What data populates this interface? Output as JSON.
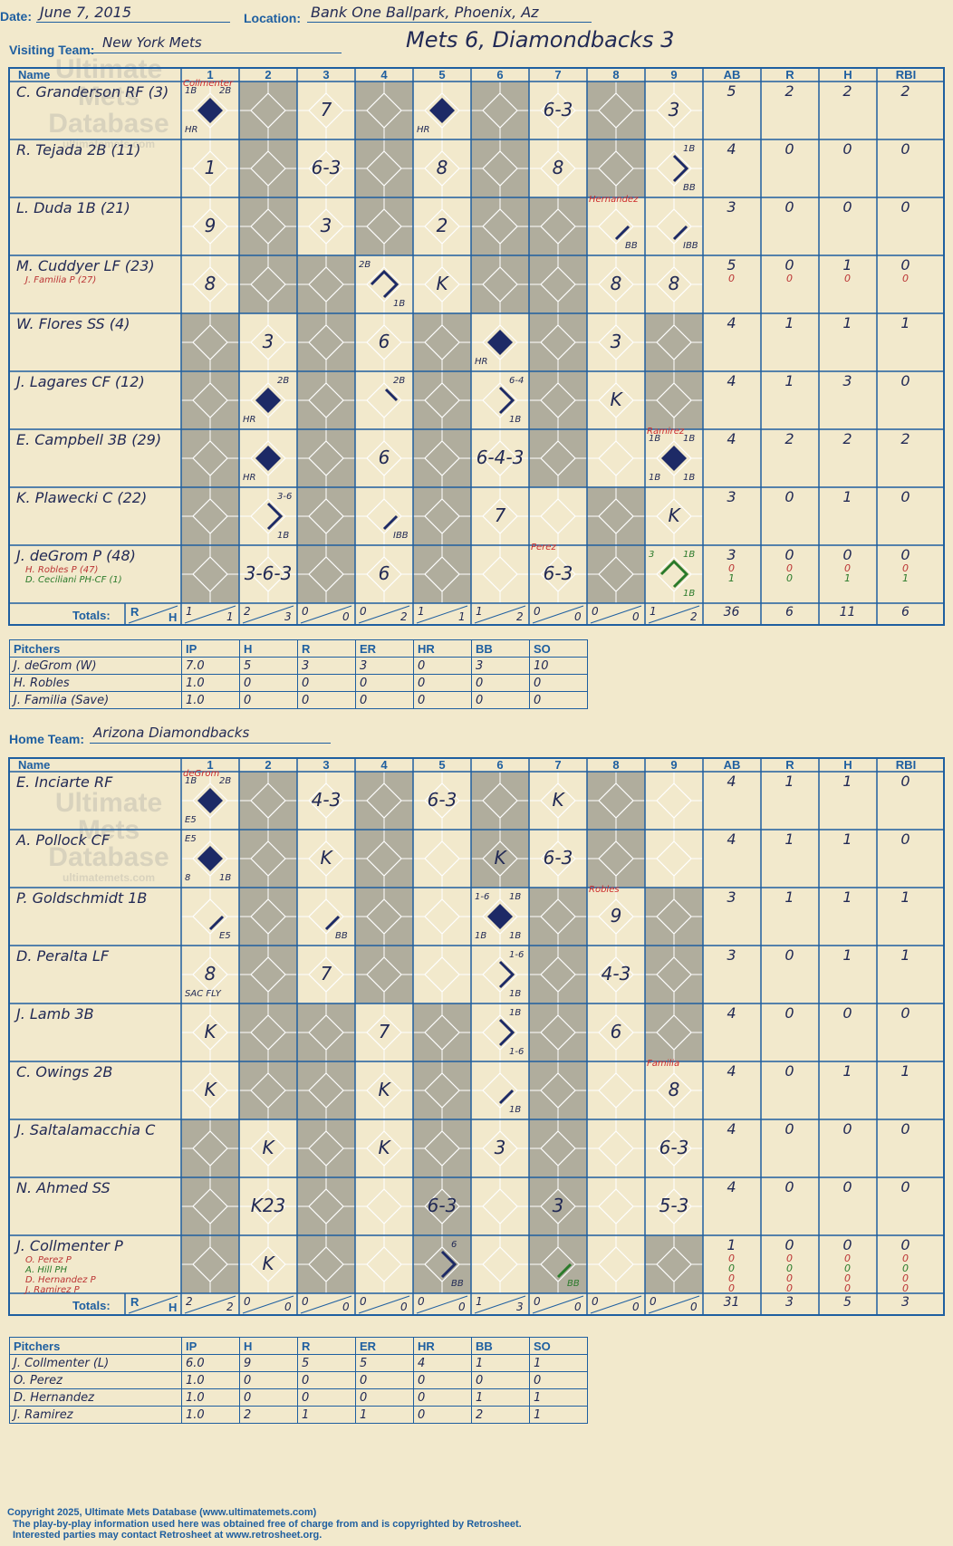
{
  "header": {
    "date_label": "Date:",
    "date": "June 7, 2015",
    "location_label": "Location:",
    "location": "Bank One Ballpark, Phoenix, Az",
    "visiting_label": "Visiting Team:",
    "visiting_team": "New York Mets",
    "home_label": "Home Team:",
    "home_team": "Arizona Diamondbacks",
    "headline": "Mets 6, Diamondbacks 3"
  },
  "columns": {
    "name": "Name",
    "innings": [
      "1",
      "2",
      "3",
      "4",
      "5",
      "6",
      "7",
      "8",
      "9"
    ],
    "stats": [
      "AB",
      "R",
      "H",
      "RBI"
    ],
    "totals": "Totals:",
    "r": "R",
    "h": "H"
  },
  "watermark": {
    "line1": "Ultimate",
    "line2": "Mets",
    "line3": "Database",
    "site": "ultimatemets.com"
  },
  "visitors": {
    "batters": [
      {
        "name": "C. Granderson RF (3)",
        "stats": [
          "5",
          "2",
          "2",
          "2"
        ],
        "subs": []
      },
      {
        "name": "R. Tejada 2B (11)",
        "stats": [
          "4",
          "0",
          "0",
          "0"
        ],
        "subs": []
      },
      {
        "name": "L. Duda 1B (21)",
        "stats": [
          "3",
          "0",
          "0",
          "0"
        ],
        "subs": []
      },
      {
        "name": "M. Cuddyer LF (23)",
        "stats": [
          "5",
          "0",
          "1",
          "0"
        ],
        "subs": [
          {
            "name": "J. Familia P (27)",
            "color": "#b33",
            "stats": [
              "0",
              "0",
              "0",
              "0"
            ]
          }
        ]
      },
      {
        "name": "W. Flores SS (4)",
        "stats": [
          "4",
          "1",
          "1",
          "1"
        ],
        "subs": []
      },
      {
        "name": "J. Lagares CF (12)",
        "stats": [
          "4",
          "1",
          "3",
          "0"
        ],
        "subs": []
      },
      {
        "name": "E. Campbell 3B (29)",
        "stats": [
          "4",
          "2",
          "2",
          "2"
        ],
        "subs": []
      },
      {
        "name": "K. Plawecki C (22)",
        "stats": [
          "3",
          "0",
          "1",
          "0"
        ],
        "subs": []
      },
      {
        "name": "J. deGrom P (48)",
        "stats": [
          "3",
          "0",
          "0",
          "0"
        ],
        "subs": [
          {
            "name": "H. Robles P (47)",
            "color": "#b33",
            "stats": [
              "0",
              "0",
              "0",
              "0"
            ]
          },
          {
            "name": "D. Ceciliani PH-CF (1)",
            "color": "#2a7a2a",
            "stats": [
              "1",
              "0",
              "1",
              "1"
            ]
          }
        ]
      }
    ],
    "shaded": [
      [
        2,
        4,
        6,
        8
      ],
      [
        2,
        4,
        6,
        8
      ],
      [
        2,
        4,
        6,
        7
      ],
      [
        2,
        3,
        6,
        7
      ],
      [
        1,
        3,
        5,
        7,
        9
      ],
      [
        1,
        3,
        5,
        7,
        9
      ],
      [
        1,
        3,
        5,
        7
      ],
      [
        1,
        3,
        5,
        8
      ],
      [
        1,
        3,
        5,
        8
      ]
    ],
    "plays": [
      [
        {
          "c": 1,
          "t": "",
          "run": true,
          "l1": "1B",
          "r1": "2B",
          "bl": "HR",
          "top": "Collmenter"
        },
        {
          "c": 3,
          "t": "7"
        },
        {
          "c": 5,
          "t": "",
          "run": true,
          "bl": "HR"
        },
        {
          "c": 7,
          "t": "6-3"
        },
        {
          "c": 9,
          "t": "3"
        }
      ],
      [
        {
          "c": 1,
          "t": "1"
        },
        {
          "c": 3,
          "t": "6-3"
        },
        {
          "c": 5,
          "t": "8"
        },
        {
          "c": 7,
          "t": "8"
        },
        {
          "c": 9,
          "t": "",
          "r1": "1B",
          "br": "BB"
        }
      ],
      [
        {
          "c": 1,
          "t": "9"
        },
        {
          "c": 3,
          "t": "3"
        },
        {
          "c": 5,
          "t": "2"
        },
        {
          "c": 8,
          "t": "",
          "br": "BB",
          "top": "Hernandez"
        },
        {
          "c": 9,
          "t": "",
          "br": "IBB"
        }
      ],
      [
        {
          "c": 1,
          "t": "8"
        },
        {
          "c": 4,
          "t": "",
          "l1": "2B",
          "br": "1B"
        },
        {
          "c": 5,
          "t": "K"
        },
        {
          "c": 8,
          "t": "8"
        },
        {
          "c": 9,
          "t": "8"
        }
      ],
      [
        {
          "c": 2,
          "t": "3"
        },
        {
          "c": 4,
          "t": "6"
        },
        {
          "c": 6,
          "t": "",
          "run": true,
          "bl": "HR"
        },
        {
          "c": 8,
          "t": "3"
        }
      ],
      [
        {
          "c": 2,
          "t": "",
          "run": true,
          "r1": "2B",
          "bl": "HR"
        },
        {
          "c": 4,
          "t": "",
          "r1": "2B"
        },
        {
          "c": 6,
          "t": "",
          "r1": "6-4",
          "br": "1B"
        },
        {
          "c": 8,
          "t": "K"
        }
      ],
      [
        {
          "c": 2,
          "t": "",
          "run": true,
          "bl": "HR"
        },
        {
          "c": 4,
          "t": "6"
        },
        {
          "c": 6,
          "t": "6-4-3"
        },
        {
          "c": 9,
          "t": "",
          "run": true,
          "l1": "1B",
          "r1": "1B",
          "bl": "1B",
          "br": "1B",
          "top": "Ramirez"
        }
      ],
      [
        {
          "c": 2,
          "t": "",
          "r1": "3-6",
          "br": "1B"
        },
        {
          "c": 4,
          "t": "",
          "br": "IBB"
        },
        {
          "c": 6,
          "t": "7"
        },
        {
          "c": 9,
          "t": "K"
        }
      ],
      [
        {
          "c": 2,
          "t": "3-6-3"
        },
        {
          "c": 4,
          "t": "6"
        },
        {
          "c": 7,
          "t": "6-3",
          "top": "Perez"
        },
        {
          "c": 9,
          "t": "",
          "l1": "3",
          "r1": "1B",
          "br": "1B",
          "green": true
        }
      ]
    ],
    "totals": [
      [
        "1",
        "1"
      ],
      [
        "2",
        "3"
      ],
      [
        "0",
        "0"
      ],
      [
        "0",
        "2"
      ],
      [
        "1",
        "1"
      ],
      [
        "1",
        "2"
      ],
      [
        "0",
        "0"
      ],
      [
        "0",
        "0"
      ],
      [
        "1",
        "2"
      ]
    ],
    "stat_totals": [
      "36",
      "6",
      "11",
      "6"
    ],
    "pitching_headers": [
      "Pitchers",
      "IP",
      "H",
      "R",
      "ER",
      "HR",
      "BB",
      "SO"
    ],
    "pitchers": [
      [
        "J. deGrom (W)",
        "7.0",
        "5",
        "3",
        "3",
        "0",
        "3",
        "10"
      ],
      [
        "H. Robles",
        "1.0",
        "0",
        "0",
        "0",
        "0",
        "0",
        "0"
      ],
      [
        "J. Familia (Save)",
        "1.0",
        "0",
        "0",
        "0",
        "0",
        "0",
        "0"
      ]
    ]
  },
  "home": {
    "batters": [
      {
        "name": "E. Inciarte RF",
        "stats": [
          "4",
          "1",
          "1",
          "0"
        ],
        "subs": []
      },
      {
        "name": "A. Pollock CF",
        "stats": [
          "4",
          "1",
          "1",
          "0"
        ],
        "subs": []
      },
      {
        "name": "P. Goldschmidt 1B",
        "stats": [
          "3",
          "1",
          "1",
          "1"
        ],
        "subs": []
      },
      {
        "name": "D. Peralta LF",
        "stats": [
          "3",
          "0",
          "1",
          "1"
        ],
        "subs": []
      },
      {
        "name": "J. Lamb 3B",
        "stats": [
          "4",
          "0",
          "0",
          "0"
        ],
        "subs": []
      },
      {
        "name": "C. Owings 2B",
        "stats": [
          "4",
          "0",
          "1",
          "1"
        ],
        "subs": []
      },
      {
        "name": "J. Saltalamacchia C",
        "stats": [
          "4",
          "0",
          "0",
          "0"
        ],
        "subs": []
      },
      {
        "name": "N. Ahmed SS",
        "stats": [
          "4",
          "0",
          "0",
          "0"
        ],
        "subs": []
      },
      {
        "name": "J. Collmenter P",
        "stats": [
          "1",
          "0",
          "0",
          "0"
        ],
        "subs": [
          {
            "name": "O. Perez P",
            "color": "#b33",
            "stats": [
              "0",
              "0",
              "0",
              "0"
            ]
          },
          {
            "name": "A. Hill PH",
            "color": "#2a7a2a",
            "stats": [
              "0",
              "0",
              "0",
              "0"
            ]
          },
          {
            "name": "D. Hernandez P",
            "color": "#b33",
            "stats": [
              "0",
              "0",
              "0",
              "0"
            ]
          },
          {
            "name": "J. Ramirez P",
            "color": "#b33",
            "stats": [
              "0",
              "0",
              "0",
              "0"
            ]
          }
        ]
      }
    ],
    "shaded": [
      [
        2,
        4,
        6,
        8
      ],
      [
        2,
        4,
        6,
        8
      ],
      [
        2,
        4,
        7,
        9
      ],
      [
        2,
        4,
        7,
        9
      ],
      [
        2,
        3,
        5,
        7,
        9
      ],
      [
        2,
        3,
        5,
        7
      ],
      [
        1,
        3,
        5,
        7
      ],
      [
        1,
        3,
        5,
        7
      ],
      [
        1,
        3,
        5,
        7,
        9
      ]
    ],
    "plays": [
      [
        {
          "c": 1,
          "t": "",
          "run": true,
          "l1": "1B",
          "r1": "2B",
          "bl": "E5",
          "top": "deGrom"
        },
        {
          "c": 3,
          "t": "4-3"
        },
        {
          "c": 5,
          "t": "6-3"
        },
        {
          "c": 7,
          "t": "K"
        }
      ],
      [
        {
          "c": 1,
          "t": "",
          "run": true,
          "l1": "E5",
          "bl": "8",
          "br": "1B"
        },
        {
          "c": 3,
          "t": "K"
        },
        {
          "c": 6,
          "t": "K"
        },
        {
          "c": 7,
          "t": "6-3"
        }
      ],
      [
        {
          "c": 1,
          "t": "",
          "br": "E5"
        },
        {
          "c": 3,
          "t": "",
          "br": "BB"
        },
        {
          "c": 6,
          "t": "",
          "run": true,
          "l1": "1-6",
          "r1": "1B",
          "bl": "1B",
          "br": "1B"
        },
        {
          "c": 8,
          "t": "9",
          "top": "Robles"
        }
      ],
      [
        {
          "c": 1,
          "t": "8",
          "bl": "SAC FLY"
        },
        {
          "c": 3,
          "t": "7"
        },
        {
          "c": 6,
          "t": "",
          "r1": "1-6",
          "br": "1B"
        },
        {
          "c": 8,
          "t": "4-3"
        }
      ],
      [
        {
          "c": 1,
          "t": "K"
        },
        {
          "c": 4,
          "t": "7"
        },
        {
          "c": 6,
          "t": "",
          "r1": "1B",
          "br": "1-6"
        },
        {
          "c": 8,
          "t": "6"
        }
      ],
      [
        {
          "c": 1,
          "t": "K"
        },
        {
          "c": 4,
          "t": "K"
        },
        {
          "c": 6,
          "t": "",
          "br": "1B"
        },
        {
          "c": 9,
          "t": "8",
          "top": "Familia"
        }
      ],
      [
        {
          "c": 2,
          "t": "K"
        },
        {
          "c": 4,
          "t": "K"
        },
        {
          "c": 6,
          "t": "3"
        },
        {
          "c": 9,
          "t": "6-3"
        }
      ],
      [
        {
          "c": 2,
          "t": "K23"
        },
        {
          "c": 5,
          "t": "6-3"
        },
        {
          "c": 7,
          "t": "3"
        },
        {
          "c": 9,
          "t": "5-3"
        }
      ],
      [
        {
          "c": 2,
          "t": "K"
        },
        {
          "c": 5,
          "t": "",
          "r1": "6",
          "br": "BB"
        },
        {
          "c": 7,
          "t": "",
          "br": "BB",
          "green": true
        }
      ]
    ],
    "totals": [
      [
        "2",
        "2"
      ],
      [
        "0",
        "0"
      ],
      [
        "0",
        "0"
      ],
      [
        "0",
        "0"
      ],
      [
        "0",
        "0"
      ],
      [
        "1",
        "3"
      ],
      [
        "0",
        "0"
      ],
      [
        "0",
        "0"
      ],
      [
        "0",
        "0"
      ]
    ],
    "stat_totals": [
      "31",
      "3",
      "5",
      "3"
    ],
    "pitching_headers": [
      "Pitchers",
      "IP",
      "H",
      "R",
      "ER",
      "HR",
      "BB",
      "SO"
    ],
    "pitchers": [
      [
        "J. Collmenter (L)",
        "6.0",
        "9",
        "5",
        "5",
        "4",
        "1",
        "1"
      ],
      [
        "O. Perez",
        "1.0",
        "0",
        "0",
        "0",
        "0",
        "0",
        "0"
      ],
      [
        "D. Hernandez",
        "1.0",
        "0",
        "0",
        "0",
        "0",
        "1",
        "1"
      ],
      [
        "J. Ramirez",
        "1.0",
        "2",
        "1",
        "1",
        "0",
        "2",
        "1"
      ]
    ]
  },
  "footer": {
    "line1": "Copyright 2025, Ultimate Mets Database (www.ultimatemets.com)",
    "line2": "The play-by-play information used here was obtained free of charge from and is copyrighted by Retrosheet.",
    "line3": "Interested parties may contact Retrosheet at www.retrosheet.org."
  },
  "colors": {
    "ink": "#1f5fa0",
    "pen": "#222a55",
    "shade": "#b0ad9d",
    "paper": "#f2e9cc",
    "run": "#1d2a66",
    "red": "#cc2a2a",
    "green": "#2a7a2a"
  }
}
